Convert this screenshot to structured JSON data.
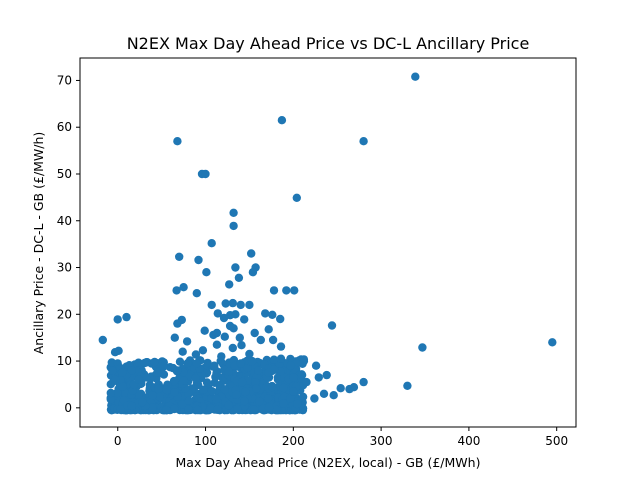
{
  "chart_data": {
    "type": "scatter",
    "title": "N2EX Max Day Ahead Price vs DC-L Ancillary Price",
    "xlabel": "Max Day Ahead Price (N2EX, local) - GB (£/MWh)",
    "ylabel": "Ancillary Price - DC-L - GB (£/MW/h)",
    "xlim": [
      -43,
      522
    ],
    "ylim": [
      -4.1,
      74.8
    ],
    "x_ticks": [
      0,
      100,
      200,
      300,
      400,
      500
    ],
    "y_ticks": [
      0,
      10,
      20,
      30,
      40,
      50,
      60,
      70
    ],
    "grid": false,
    "marker_color": "#1f77b4",
    "series": [
      {
        "points": [
          [
            339,
            70.8
          ],
          [
            187,
            61.5
          ],
          [
            68,
            57.0
          ],
          [
            280,
            57.0
          ],
          [
            96,
            50.0
          ],
          [
            100,
            50.0
          ],
          [
            204,
            44.9
          ],
          [
            132,
            41.7
          ],
          [
            132,
            38.9
          ],
          [
            107,
            35.2
          ],
          [
            152,
            33.0
          ],
          [
            70,
            32.3
          ],
          [
            92,
            31.6
          ],
          [
            157,
            30.0
          ],
          [
            134,
            30.0
          ],
          [
            154,
            29.0
          ],
          [
            101,
            29.0
          ],
          [
            127,
            26.4
          ],
          [
            138,
            27.8
          ],
          [
            75,
            25.8
          ],
          [
            67,
            25.1
          ],
          [
            178,
            25.1
          ],
          [
            192,
            25.1
          ],
          [
            201,
            25.1
          ],
          [
            90,
            24.5
          ],
          [
            150,
            22.0
          ],
          [
            123,
            22.3
          ],
          [
            131,
            22.4
          ],
          [
            107,
            22.0
          ],
          [
            140,
            22.0
          ],
          [
            168,
            20.2
          ],
          [
            176,
            19.9
          ],
          [
            114,
            20.2
          ],
          [
            128,
            19.8
          ],
          [
            134,
            20.0
          ],
          [
            121,
            19.2
          ],
          [
            144,
            18.9
          ],
          [
            10,
            19.4
          ],
          [
            0,
            18.9
          ],
          [
            73,
            18.8
          ],
          [
            68,
            18.0
          ],
          [
            185,
            19.0
          ],
          [
            128,
            17.5
          ],
          [
            244,
            17.6
          ],
          [
            132,
            17.0
          ],
          [
            99,
            16.5
          ],
          [
            113,
            16.0
          ],
          [
            156,
            16.0
          ],
          [
            172,
            16.8
          ],
          [
            109,
            15.6
          ],
          [
            122,
            15.2
          ],
          [
            65,
            15.0
          ],
          [
            139,
            15.0
          ],
          [
            -17,
            14.5
          ],
          [
            495,
            14.0
          ],
          [
            163,
            14.5
          ],
          [
            177,
            14.5
          ],
          [
            79,
            14.2
          ],
          [
            113,
            13.5
          ],
          [
            141,
            13.4
          ],
          [
            347,
            12.9
          ],
          [
            186,
            13.1
          ],
          [
            131,
            12.8
          ],
          [
            97,
            12.3
          ],
          [
            -3,
            11.9
          ],
          [
            1,
            12.2
          ],
          [
            74,
            12.0
          ],
          [
            89,
            11.4
          ],
          [
            118,
            11.0
          ],
          [
            150,
            11.5
          ],
          [
            178,
            10.3
          ],
          [
            212,
            10.0
          ],
          [
            0,
            9.5
          ],
          [
            3,
            8.5
          ],
          [
            5,
            7.5
          ],
          [
            16,
            8.0
          ],
          [
            42,
            9.8
          ],
          [
            52,
            8.8
          ],
          [
            90,
            9.5
          ],
          [
            140,
            9.5
          ],
          [
            153,
            10.0
          ],
          [
            186,
            10.5
          ],
          [
            197,
            9.0
          ],
          [
            226,
            9.0
          ],
          [
            238,
            7.0
          ],
          [
            229,
            6.5
          ],
          [
            210,
            7.0
          ],
          [
            280,
            5.5
          ],
          [
            330,
            4.7
          ],
          [
            264,
            4.0
          ],
          [
            269,
            4.4
          ],
          [
            254,
            4.2
          ],
          [
            246,
            2.7
          ],
          [
            224,
            2.0
          ],
          [
            235,
            3.0
          ],
          [
            24,
            6.0
          ],
          [
            33,
            6.5
          ],
          [
            45,
            7.5
          ],
          [
            63,
            8.5
          ],
          [
            68,
            8.0
          ],
          [
            110,
            9.0
          ],
          [
            160,
            8.0
          ],
          [
            172,
            7.5
          ],
          [
            203,
            4.5
          ],
          [
            215,
            5.5
          ],
          [
            200,
            3.5
          ]
        ]
      }
    ]
  }
}
